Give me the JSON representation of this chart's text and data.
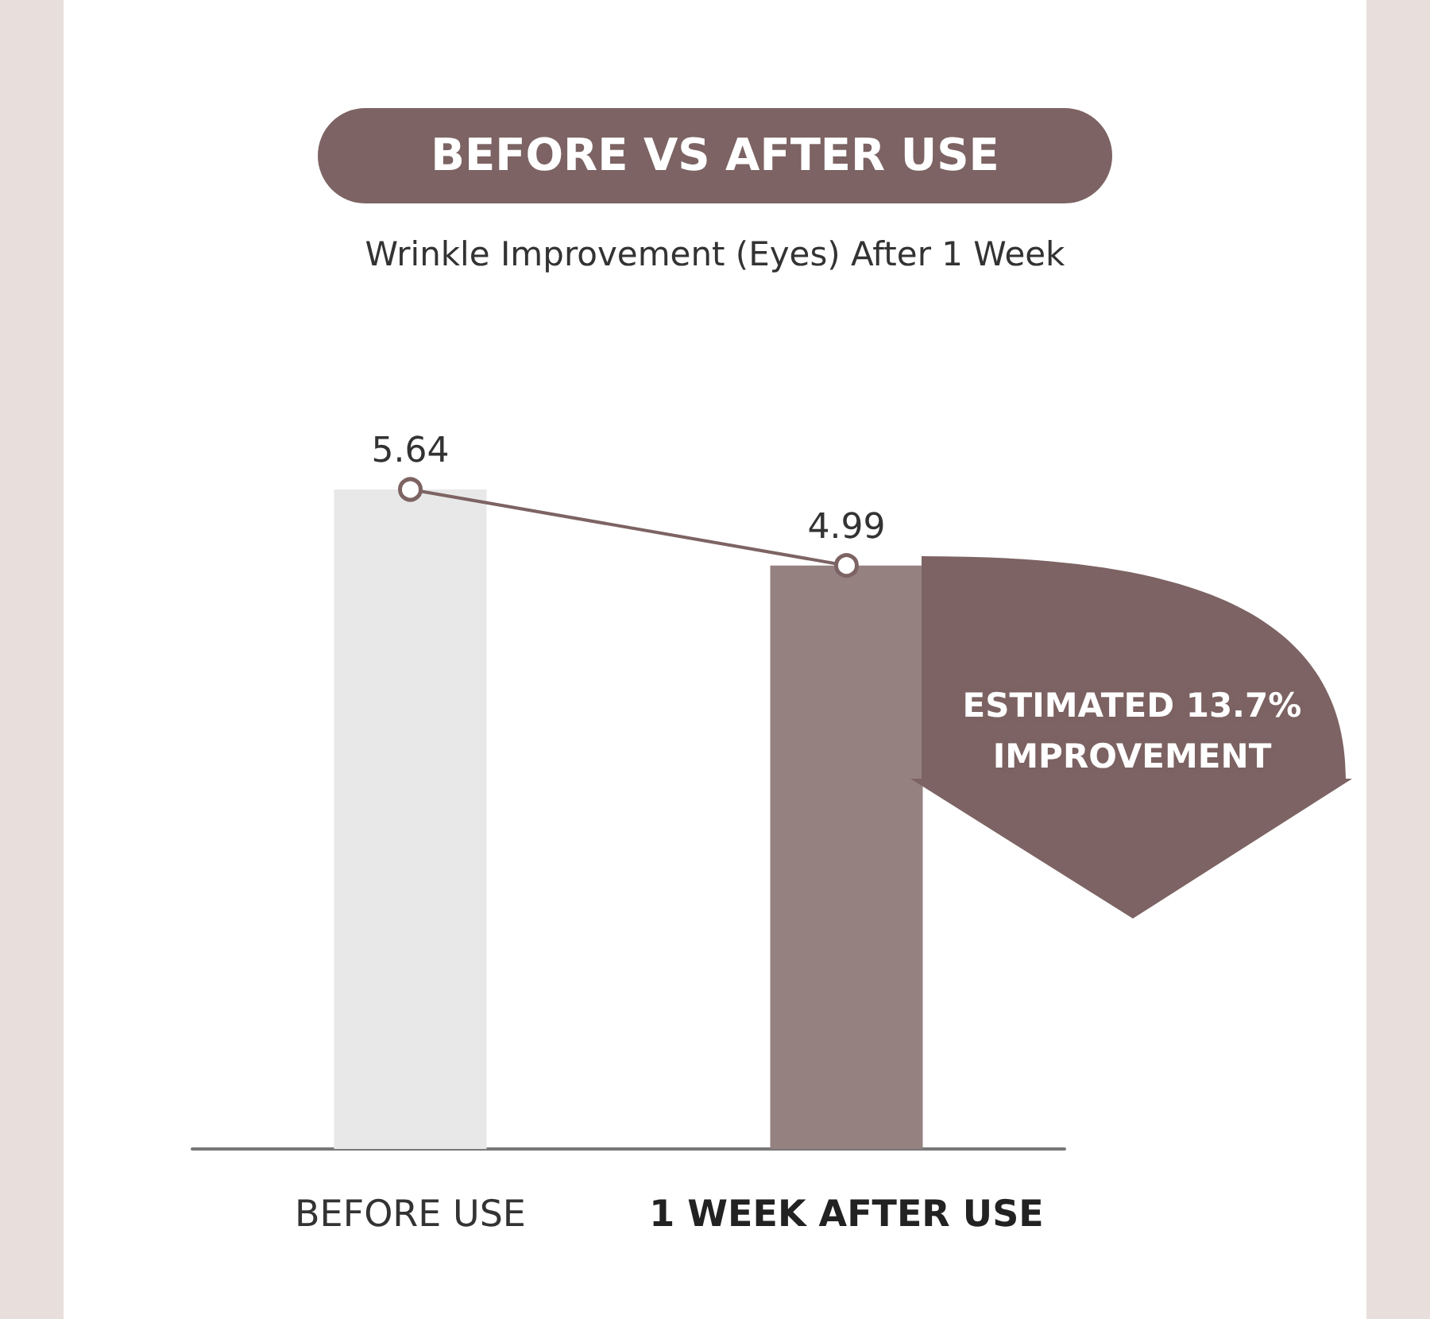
{
  "chart_data": {
    "type": "bar",
    "title": "BEFORE VS AFTER USE",
    "subtitle": "Wrinkle Improvement (Eyes) After 1 Week",
    "categories": [
      "BEFORE USE",
      "1 WEEK AFTER USE"
    ],
    "series": [
      {
        "type": "bar",
        "colors": [
          "#e8e8e8",
          "#968181"
        ],
        "values": [
          5.64,
          4.99
        ],
        "value_labels": [
          "5.64",
          "4.99"
        ]
      },
      {
        "type": "line",
        "color": "#7d6363",
        "values": [
          5.64,
          4.99
        ]
      }
    ],
    "marker": "circle",
    "tick_labels": "x",
    "annotations": [
      "ESTIMATED 13.7% IMPROVEMENT"
    ]
  }
}
